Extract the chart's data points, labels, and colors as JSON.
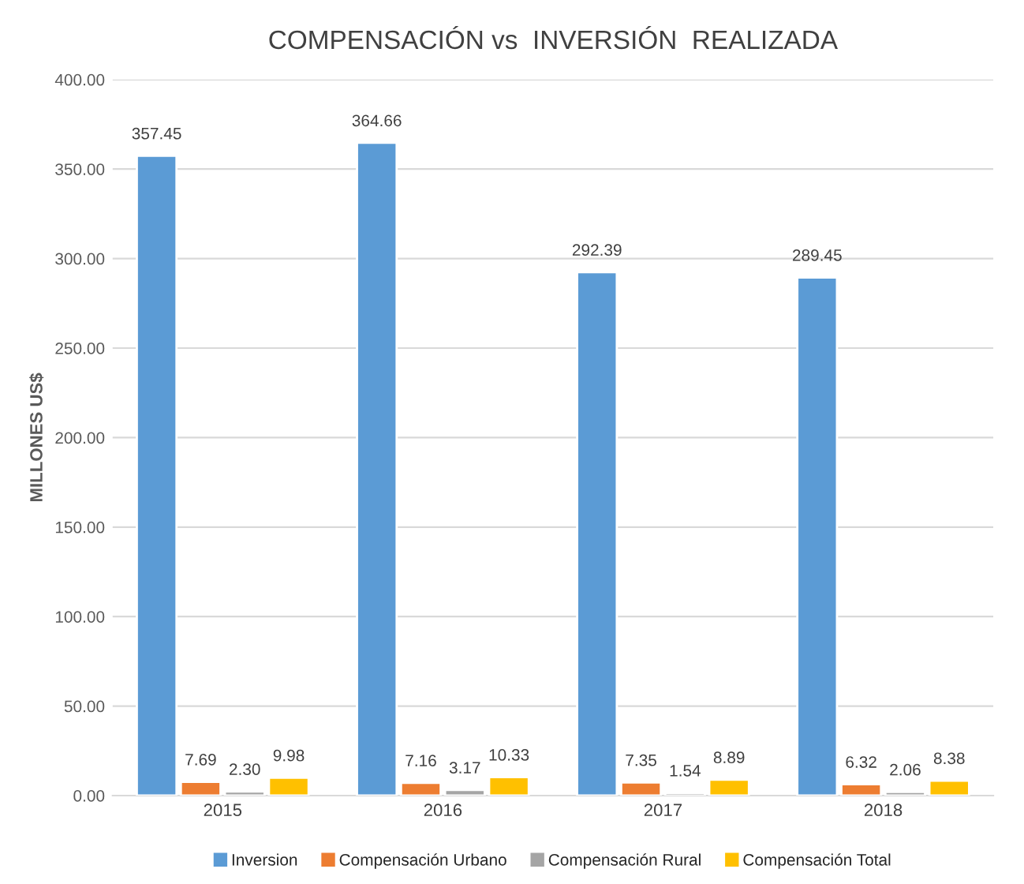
{
  "chart_data": {
    "type": "bar",
    "title": "COMPENSACIÓN vs  INVERSIÓN  REALIZADA",
    "ylabel": "MILLONES US$",
    "categories": [
      "2015",
      "2016",
      "2017",
      "2018"
    ],
    "series": [
      {
        "name": "Inversion",
        "color": "#5b9bd5",
        "values": [
          357.45,
          364.66,
          292.39,
          289.45
        ],
        "value_labels": [
          "357.45",
          "364.66",
          "292.39",
          "289.45"
        ]
      },
      {
        "name": "Compensación Urbano",
        "color": "#ed7d31",
        "values": [
          7.69,
          7.16,
          7.35,
          6.32
        ],
        "value_labels": [
          "7.69",
          "7.16",
          "7.35",
          "6.32"
        ]
      },
      {
        "name": "Compensación Rural",
        "color": "#a5a5a5",
        "values": [
          2.3,
          3.17,
          1.54,
          2.06
        ],
        "value_labels": [
          "2.30",
          "3.17",
          "1.54",
          "2.06"
        ]
      },
      {
        "name": "Compensación Total",
        "color": "#ffc000",
        "values": [
          9.98,
          10.33,
          8.89,
          8.38
        ],
        "value_labels": [
          "9.98",
          "10.33",
          "8.89",
          "8.38"
        ]
      }
    ],
    "ylim": [
      0,
      400
    ],
    "yticks": [
      {
        "value": 0,
        "label": "0.00"
      },
      {
        "value": 50,
        "label": "50.00"
      },
      {
        "value": 100,
        "label": "100.00"
      },
      {
        "value": 150,
        "label": "150.00"
      },
      {
        "value": 200,
        "label": "200.00"
      },
      {
        "value": 250,
        "label": "250.00"
      },
      {
        "value": 300,
        "label": "300.00"
      },
      {
        "value": 350,
        "label": "350.00"
      },
      {
        "value": 400,
        "label": "400.00"
      }
    ],
    "grid": "y",
    "legend": "bottom"
  }
}
